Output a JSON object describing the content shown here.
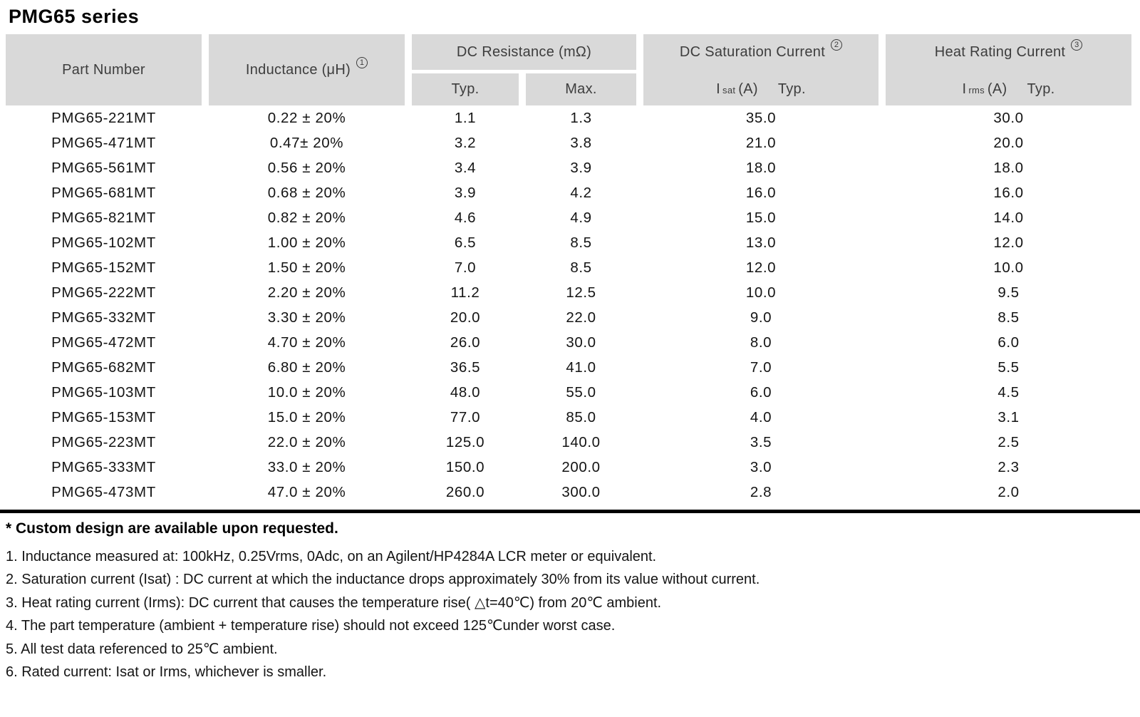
{
  "title": "PMG65 series",
  "table": {
    "headers": {
      "part_number": "Part Number",
      "inductance": "Inductance (μH)",
      "inductance_note": "1",
      "dc_resistance": "DC Resistance (mΩ)",
      "dcr_typ": "Typ.",
      "dcr_max": "Max.",
      "saturation": "DC Saturation Current",
      "saturation_note": "2",
      "saturation_symbol": "I",
      "saturation_symbol_sub": "sat",
      "saturation_unit": "(A)",
      "saturation_typ": "Typ.",
      "heat": "Heat Rating Current",
      "heat_note": "3",
      "heat_symbol": "I",
      "heat_symbol_sub": "rms",
      "heat_unit": "(A)",
      "heat_typ": "Typ."
    },
    "rows": [
      {
        "part": "PMG65-221MT",
        "inductance": "0.22 ± 20%",
        "dcr_typ": "1.1",
        "dcr_max": "1.3",
        "isat": "35.0",
        "irms": "30.0"
      },
      {
        "part": "PMG65-471MT",
        "inductance": "0.47± 20%",
        "dcr_typ": "3.2",
        "dcr_max": "3.8",
        "isat": "21.0",
        "irms": "20.0"
      },
      {
        "part": "PMG65-561MT",
        "inductance": "0.56 ± 20%",
        "dcr_typ": "3.4",
        "dcr_max": "3.9",
        "isat": "18.0",
        "irms": "18.0"
      },
      {
        "part": "PMG65-681MT",
        "inductance": "0.68 ± 20%",
        "dcr_typ": "3.9",
        "dcr_max": "4.2",
        "isat": "16.0",
        "irms": "16.0"
      },
      {
        "part": "PMG65-821MT",
        "inductance": "0.82 ± 20%",
        "dcr_typ": "4.6",
        "dcr_max": "4.9",
        "isat": "15.0",
        "irms": "14.0"
      },
      {
        "part": "PMG65-102MT",
        "inductance": "1.00 ± 20%",
        "dcr_typ": "6.5",
        "dcr_max": "8.5",
        "isat": "13.0",
        "irms": "12.0"
      },
      {
        "part": "PMG65-152MT",
        "inductance": "1.50 ± 20%",
        "dcr_typ": "7.0",
        "dcr_max": "8.5",
        "isat": "12.0",
        "irms": "10.0"
      },
      {
        "part": "PMG65-222MT",
        "inductance": "2.20 ± 20%",
        "dcr_typ": "11.2",
        "dcr_max": "12.5",
        "isat": "10.0",
        "irms": "9.5"
      },
      {
        "part": "PMG65-332MT",
        "inductance": "3.30 ± 20%",
        "dcr_typ": "20.0",
        "dcr_max": "22.0",
        "isat": "9.0",
        "irms": "8.5"
      },
      {
        "part": "PMG65-472MT",
        "inductance": "4.70 ± 20%",
        "dcr_typ": "26.0",
        "dcr_max": "30.0",
        "isat": "8.0",
        "irms": "6.0"
      },
      {
        "part": "PMG65-682MT",
        "inductance": "6.80 ± 20%",
        "dcr_typ": "36.5",
        "dcr_max": "41.0",
        "isat": "7.0",
        "irms": "5.5"
      },
      {
        "part": "PMG65-103MT",
        "inductance": "10.0 ± 20%",
        "dcr_typ": "48.0",
        "dcr_max": "55.0",
        "isat": "6.0",
        "irms": "4.5"
      },
      {
        "part": "PMG65-153MT",
        "inductance": "15.0 ± 20%",
        "dcr_typ": "77.0",
        "dcr_max": "85.0",
        "isat": "4.0",
        "irms": "3.1"
      },
      {
        "part": "PMG65-223MT",
        "inductance": "22.0 ± 20%",
        "dcr_typ": "125.0",
        "dcr_max": "140.0",
        "isat": "3.5",
        "irms": "2.5"
      },
      {
        "part": "PMG65-333MT",
        "inductance": "33.0 ± 20%",
        "dcr_typ": "150.0",
        "dcr_max": "200.0",
        "isat": "3.0",
        "irms": "2.3"
      },
      {
        "part": "PMG65-473MT",
        "inductance": "47.0 ± 20%",
        "dcr_typ": "260.0",
        "dcr_max": "300.0",
        "isat": "2.8",
        "irms": "2.0"
      }
    ]
  },
  "notes": {
    "custom": "* Custom design are available upon requested.",
    "items": [
      "1. Inductance measured at: 100kHz, 0.25Vrms, 0Adc, on an Agilent/HP4284A LCR meter or equivalent.",
      "2. Saturation current (Isat) : DC current at which the inductance drops approximately 30% from its value without current.",
      "3. Heat rating current (Irms): DC current that causes the temperature rise( △t=40℃) from 20℃ ambient.",
      "4. The part temperature (ambient + temperature rise) should not exceed 125℃under worst case.",
      "5. All test data referenced to 25℃ ambient.",
      "6. Rated current: Isat or Irms, whichever is smaller."
    ]
  },
  "colors": {
    "header_bg": "#d9d9d9",
    "header_text": "#3d3d3d",
    "body_text": "#141414",
    "rule": "#000000"
  }
}
